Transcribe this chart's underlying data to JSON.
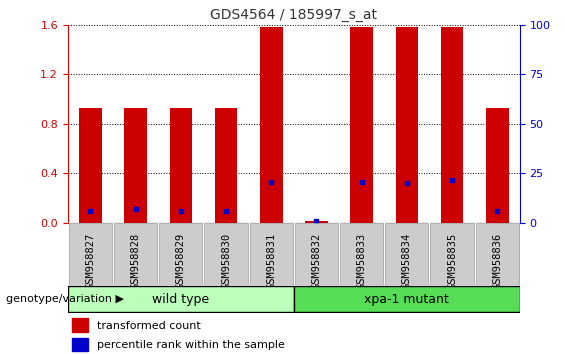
{
  "title": "GDS4564 / 185997_s_at",
  "samples": [
    "GSM958827",
    "GSM958828",
    "GSM958829",
    "GSM958830",
    "GSM958831",
    "GSM958832",
    "GSM958833",
    "GSM958834",
    "GSM958835",
    "GSM958836"
  ],
  "transformed_count": [
    0.93,
    0.93,
    0.93,
    0.93,
    1.58,
    0.02,
    1.58,
    1.58,
    1.58,
    0.93
  ],
  "percentile_rank": [
    0.1,
    0.11,
    0.1,
    0.1,
    0.33,
    0.02,
    0.33,
    0.32,
    0.35,
    0.1
  ],
  "ylim_left": [
    0,
    1.6
  ],
  "ylim_right": [
    0,
    100
  ],
  "yticks_left": [
    0,
    0.4,
    0.8,
    1.2,
    1.6
  ],
  "yticks_right": [
    0,
    25,
    50,
    75,
    100
  ],
  "bar_color": "#cc0000",
  "dot_color": "#0000cc",
  "bar_width": 0.5,
  "groups": [
    {
      "label": "wild type",
      "start": 0,
      "end": 4,
      "color": "#bbffbb"
    },
    {
      "label": "xpa-1 mutant",
      "start": 5,
      "end": 9,
      "color": "#55dd55"
    }
  ],
  "group_label": "genotype/variation",
  "legend_items": [
    {
      "color": "#cc0000",
      "label": "transformed count"
    },
    {
      "color": "#0000cc",
      "label": "percentile rank within the sample"
    }
  ],
  "tick_label_fontsize": 7.5,
  "title_fontsize": 10,
  "title_color": "#333333",
  "left_axis_color": "#cc0000",
  "right_axis_color": "#0000cc",
  "grid_color": "black",
  "bg_color": "#ffffff",
  "tick_bg_color": "#cccccc",
  "legend_fontsize": 8
}
